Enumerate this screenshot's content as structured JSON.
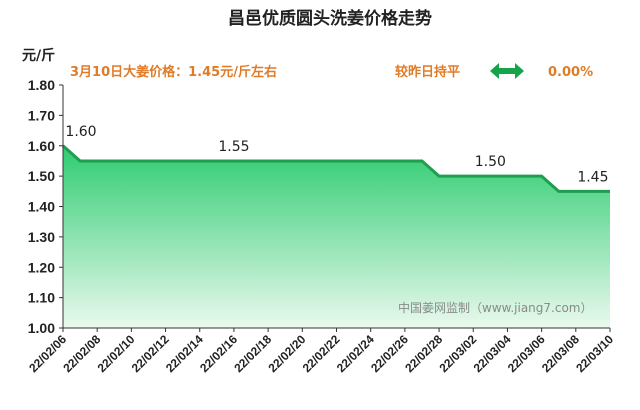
{
  "chart_data": {
    "type": "area",
    "title": "昌邑优质圆头洗姜价格走势",
    "y_label": "元/斤",
    "annotations": {
      "price_note": "3月10日大姜价格：1.45元/斤左右",
      "compare": "较昨日持平",
      "change": "0.00%",
      "watermark": "中国姜网监制（www.jiang7.com）"
    },
    "categories": [
      "22/02/06",
      null,
      "22/02/08",
      null,
      "22/02/10",
      null,
      "22/02/12",
      null,
      "22/02/14",
      null,
      "22/02/16",
      null,
      "22/02/18",
      null,
      "22/02/20",
      null,
      "22/02/22",
      null,
      "22/02/24",
      null,
      "22/02/26",
      null,
      "22/02/28",
      null,
      "22/03/02",
      null,
      "22/03/04",
      null,
      "22/03/06",
      null,
      "22/03/08",
      null,
      "22/03/10"
    ],
    "values": [
      1.6,
      1.55,
      1.55,
      1.55,
      1.55,
      1.55,
      1.55,
      1.55,
      1.55,
      1.55,
      1.55,
      1.55,
      1.55,
      1.55,
      1.55,
      1.55,
      1.55,
      1.55,
      1.55,
      1.55,
      1.55,
      1.55,
      1.5,
      1.5,
      1.5,
      1.5,
      1.5,
      1.5,
      1.5,
      1.45,
      1.45,
      1.45,
      1.45
    ],
    "value_labels": [
      "1.60",
      null,
      null,
      null,
      null,
      null,
      null,
      null,
      null,
      null,
      "1.55",
      null,
      null,
      null,
      null,
      null,
      null,
      null,
      null,
      null,
      null,
      null,
      null,
      null,
      null,
      "1.50",
      null,
      null,
      null,
      null,
      null,
      "1.45",
      null
    ],
    "color": "#1e9e4e",
    "ylim": [
      1.0,
      1.8
    ],
    "yticks": [
      {
        "value": 1.0,
        "label": "1.00"
      },
      {
        "value": 1.1,
        "label": "1.10"
      },
      {
        "value": 1.2,
        "label": "1.20"
      },
      {
        "value": 1.3,
        "label": "1.30"
      },
      {
        "value": 1.4,
        "label": "1.40"
      },
      {
        "value": 1.5,
        "label": "1.50"
      },
      {
        "value": 1.6,
        "label": "1.60"
      },
      {
        "value": 1.7,
        "label": "1.70"
      },
      {
        "value": 1.8,
        "label": "1.80"
      }
    ],
    "grid": false
  }
}
